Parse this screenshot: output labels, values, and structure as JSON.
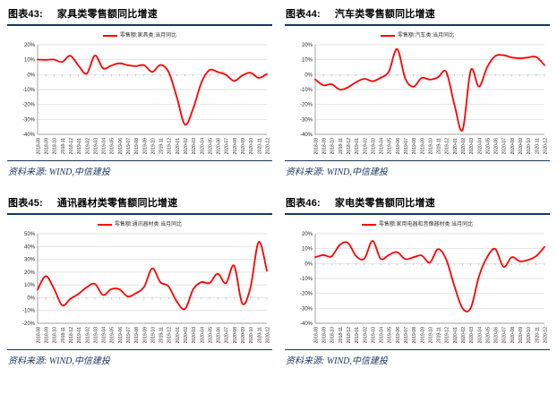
{
  "colors": {
    "line": "#FF0000",
    "rule": "#17375D",
    "grid": "#D9D9D9",
    "axis": "#808080",
    "tick_text": "#262626"
  },
  "months": [
    "2018-08",
    "2018-09",
    "2018-10",
    "2018-11",
    "2018-12",
    "2019-01",
    "2019-02",
    "2019-03",
    "2019-04",
    "2019-05",
    "2019-06",
    "2019-07",
    "2019-08",
    "2019-09",
    "2019-10",
    "2019-11",
    "2019-12",
    "2020-01",
    "2020-02",
    "2020-03",
    "2020-04",
    "2020-05",
    "2020-06",
    "2020-07",
    "2020-08",
    "2020-09",
    "2020-10",
    "2020-11",
    "2020-12"
  ],
  "chart_data": [
    {
      "type": "line",
      "tag": "图表43:",
      "title": "家具类零售额同比增速",
      "legend": "零售额:家具类:当月同比",
      "source": "资料来源: WIND,中信建投",
      "ylim": [
        -40,
        20
      ],
      "yticks": [
        20,
        10,
        0,
        -10,
        -20,
        -30,
        -40
      ],
      "values": [
        10.1,
        9.9,
        10.1,
        8.5,
        12.7,
        6.0,
        0.7,
        12.8,
        4.2,
        6.1,
        7.6,
        6.3,
        5.7,
        6.3,
        1.8,
        6.5,
        1.8,
        -15.0,
        -33.5,
        -22.7,
        -5.4,
        3.0,
        1.8,
        -0.1,
        -4.2,
        -0.6,
        1.3,
        -2.2,
        0.4
      ]
    },
    {
      "type": "line",
      "tag": "图表44:",
      "title": "汽车类零售额同比增速",
      "legend": "零售额:汽车类:当月同比",
      "source": "资料来源: WIND,中信建投",
      "ylim": [
        -40,
        20
      ],
      "yticks": [
        20,
        10,
        0,
        -10,
        -20,
        -30,
        -40
      ],
      "values": [
        -3.2,
        -7.1,
        -6.4,
        -10.0,
        -8.5,
        -5.0,
        -2.8,
        -4.4,
        -2.1,
        2.1,
        17.2,
        -2.6,
        -8.1,
        -2.2,
        -3.3,
        -1.8,
        1.8,
        -20.0,
        -37.0,
        3.0,
        -8.0,
        5.0,
        12.5,
        13.0,
        11.5,
        11.0,
        11.5,
        11.8,
        6.4
      ]
    },
    {
      "type": "line",
      "tag": "图表45:",
      "title": "通讯器材类零售额同比增速",
      "legend": "零售额:通讯器材类:当月同比",
      "source": "资料来源: WIND,中信建投",
      "ylim": [
        -20,
        50
      ],
      "yticks": [
        50,
        40,
        30,
        20,
        10,
        0,
        -10,
        -20
      ],
      "values": [
        6.4,
        16.9,
        7.1,
        -5.9,
        -0.9,
        3.0,
        8.2,
        10.8,
        2.1,
        6.7,
        6.5,
        1.0,
        3.5,
        8.4,
        22.9,
        12.1,
        8.8,
        -3.0,
        -8.8,
        6.5,
        12.2,
        11.4,
        18.8,
        11.3,
        25.1,
        -4.6,
        8.0,
        43.6,
        21.0
      ]
    },
    {
      "type": "line",
      "tag": "图表46:",
      "title": "家电类零售额同比增速",
      "legend": "零售额:家用电器和音像器材类:当月同比",
      "source": "资料来源: WIND,中信建投",
      "ylim": [
        -40,
        20
      ],
      "yticks": [
        20,
        10,
        0,
        -10,
        -20,
        -30,
        -40
      ],
      "values": [
        4.3,
        5.7,
        4.8,
        12.5,
        13.9,
        5.0,
        3.3,
        15.2,
        3.2,
        5.8,
        7.7,
        3.0,
        4.2,
        5.4,
        0.7,
        9.7,
        2.7,
        -15.0,
        -30.0,
        -29.7,
        -8.5,
        4.3,
        9.8,
        -2.2,
        4.3,
        1.5,
        2.5,
        5.1,
        11.2
      ]
    }
  ]
}
